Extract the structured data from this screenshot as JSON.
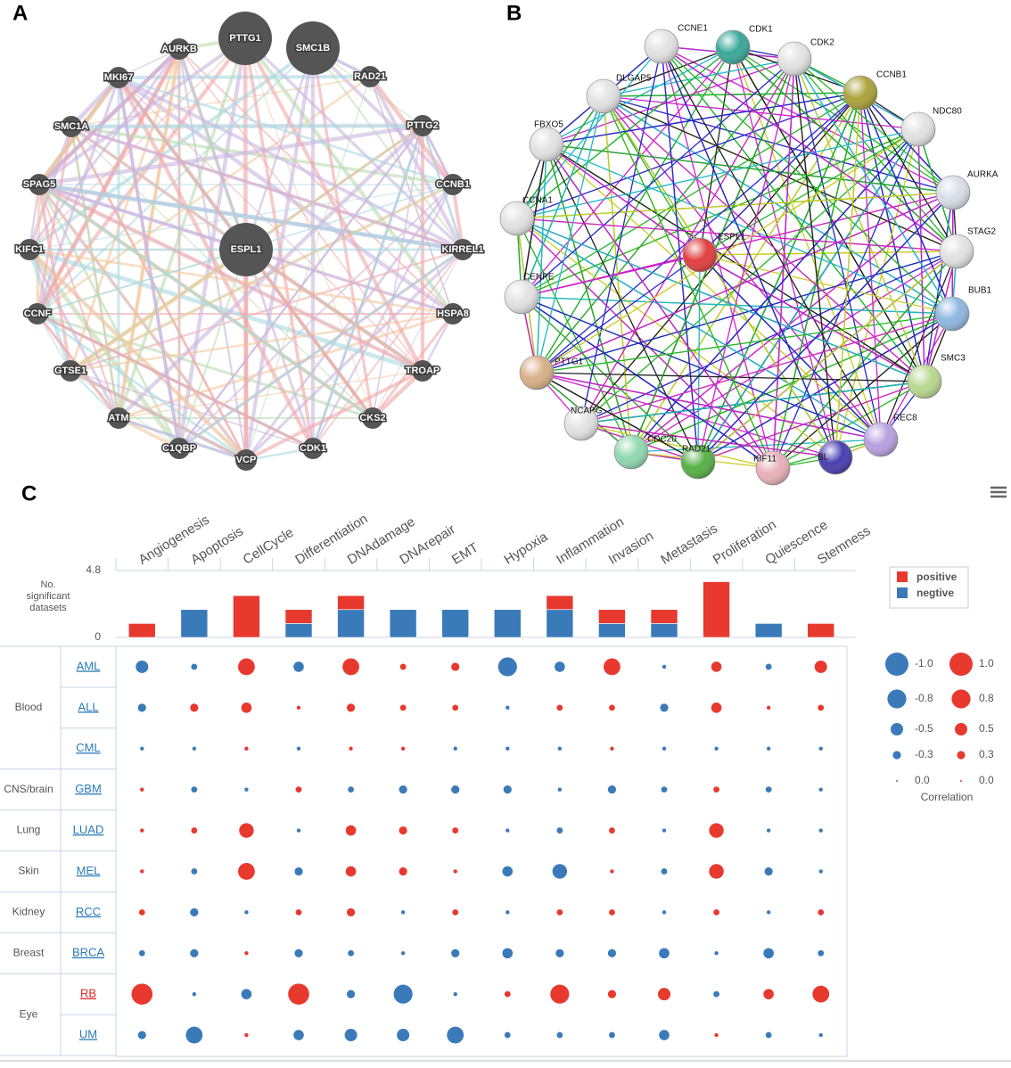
{
  "panel_labels": [
    "A",
    "B",
    "C"
  ],
  "network_a": {
    "nodes": [
      "PTTG1",
      "SMC1B",
      "AURKB",
      "MKI67",
      "RAD21",
      "SMC1A",
      "PTTG2",
      "SPAG5",
      "CCNB1",
      "KIFC1",
      "KIRREL1",
      "CCNF",
      "HSPA8",
      "GTSE1",
      "TROAP",
      "ATM",
      "CKS2",
      "C1QBP",
      "VCP",
      "CDK1",
      "ESPL1"
    ]
  },
  "network_b": {
    "nodes": [
      "CCNE1",
      "CDK1",
      "CDK2",
      "CCNB1",
      "NDC80",
      "AURKA",
      "STAG2",
      "BUB1",
      "SMC3",
      "REC8",
      "BL",
      "KIF11",
      "RAD21",
      "CDC20",
      "NCAPG",
      "PTTG1",
      "CENPE",
      "CCNA1",
      "FBXO5",
      "DLGAP5",
      "ESPL1"
    ]
  },
  "chart_data": [
    {
      "type": "bar",
      "stacked": true,
      "categories": [
        "Angiogenesis",
        "Apoptosis",
        "CellCycle",
        "Differentiation",
        "DNAdamage",
        "DNArepair",
        "EMT",
        "Hypoxia",
        "Inflammation",
        "Invasion",
        "Metastasis",
        "Proliferation",
        "Quiescence",
        "Stemness"
      ],
      "series": [
        {
          "name": "positive",
          "color": "#e8392f",
          "values": [
            1,
            0,
            3,
            1,
            1,
            0,
            0,
            0,
            1,
            1,
            1,
            4,
            0,
            1
          ]
        },
        {
          "name": "negtive",
          "color": "#3a7ab9",
          "values": [
            0,
            2,
            0,
            1,
            2,
            2,
            2,
            2,
            2,
            1,
            1,
            0,
            1,
            0
          ]
        }
      ],
      "ylabel": "No. significant datasets",
      "ylim": [
        0,
        4.8
      ],
      "yticks": [
        0,
        4.8
      ],
      "legend": "right"
    },
    {
      "type": "bubble-matrix",
      "positive_color": "#e8392f",
      "negative_color": "#3a7ab9",
      "groups": [
        {
          "name": "Blood",
          "rows": [
            {
              "name": "AML",
              "color": "#2a7ab8",
              "values": [
                -0.5,
                -0.2,
                0.7,
                -0.4,
                0.7,
                0.2,
                0.3,
                -0.8,
                -0.4,
                0.7,
                -0.1,
                0.4,
                -0.2,
                0.5
              ]
            },
            {
              "name": "ALL",
              "color": "#2a7ab8",
              "values": [
                -0.3,
                0.3,
                0.4,
                0.1,
                0.3,
                0.2,
                0.2,
                -0.1,
                0.2,
                0.2,
                -0.3,
                0.4,
                0.1,
                0.2
              ]
            },
            {
              "name": "CML",
              "color": "#2a7ab8",
              "values": [
                -0.1,
                -0.1,
                0.1,
                -0.1,
                0.1,
                0.1,
                -0.1,
                -0.1,
                -0.1,
                0.1,
                -0.1,
                -0.1,
                -0.1,
                -0.1
              ]
            }
          ]
        },
        {
          "name": "CNS/brain",
          "rows": [
            {
              "name": "GBM",
              "color": "#2a7ab8",
              "values": [
                0.1,
                -0.2,
                -0.1,
                0.2,
                -0.2,
                -0.3,
                -0.3,
                -0.3,
                -0.1,
                -0.3,
                -0.2,
                0.2,
                -0.2,
                -0.1
              ]
            }
          ]
        },
        {
          "name": "Lung",
          "rows": [
            {
              "name": "LUAD",
              "color": "#2a7ab8",
              "values": [
                0.1,
                0.2,
                0.6,
                -0.1,
                0.4,
                0.3,
                0.2,
                -0.1,
                -0.2,
                0.2,
                -0.1,
                0.6,
                -0.1,
                -0.1
              ]
            }
          ]
        },
        {
          "name": "Skin",
          "rows": [
            {
              "name": "MEL",
              "color": "#2a7ab8",
              "values": [
                0.1,
                -0.2,
                0.7,
                -0.3,
                0.4,
                0.3,
                0.1,
                -0.4,
                -0.6,
                0.1,
                -0.2,
                0.6,
                -0.3,
                -0.1
              ]
            }
          ]
        },
        {
          "name": "Kidney",
          "rows": [
            {
              "name": "RCC",
              "color": "#2a7ab8",
              "values": [
                0.2,
                -0.3,
                -0.1,
                0.2,
                0.3,
                -0.1,
                0.2,
                -0.1,
                0.2,
                0.2,
                -0.1,
                0.2,
                -0.1,
                0.2
              ]
            }
          ]
        },
        {
          "name": "Breast",
          "rows": [
            {
              "name": "BRCA",
              "color": "#2a7ab8",
              "values": [
                -0.2,
                -0.3,
                0.1,
                -0.3,
                -0.2,
                -0.1,
                -0.3,
                -0.4,
                -0.3,
                -0.3,
                -0.4,
                -0.1,
                -0.4,
                -0.2
              ]
            }
          ]
        },
        {
          "name": "Eye",
          "rows": [
            {
              "name": "RB",
              "color": "#d62728",
              "values": [
                0.9,
                -0.1,
                -0.4,
                0.9,
                -0.3,
                -0.8,
                -0.1,
                0.2,
                0.8,
                0.3,
                0.5,
                -0.2,
                0.4,
                0.7
              ]
            },
            {
              "name": "UM",
              "color": "#2a7ab8",
              "values": [
                -0.3,
                -0.7,
                0.1,
                -0.4,
                -0.5,
                -0.5,
                -0.7,
                -0.2,
                -0.2,
                -0.2,
                -0.4,
                0.1,
                -0.2,
                -0.1
              ]
            }
          ]
        }
      ],
      "size_legend": {
        "title": "Correlation",
        "negative": [
          {
            "value": -1.0,
            "label": "-1.0"
          },
          -0.8,
          -0.5,
          -0.3,
          {
            "value": 0,
            "label": "0.0"
          }
        ],
        "positive": [
          {
            "value": 1.0,
            "label": "1.0"
          },
          0.8,
          0.5,
          0.3,
          {
            "value": 0,
            "label": "0.0"
          }
        ]
      }
    }
  ]
}
